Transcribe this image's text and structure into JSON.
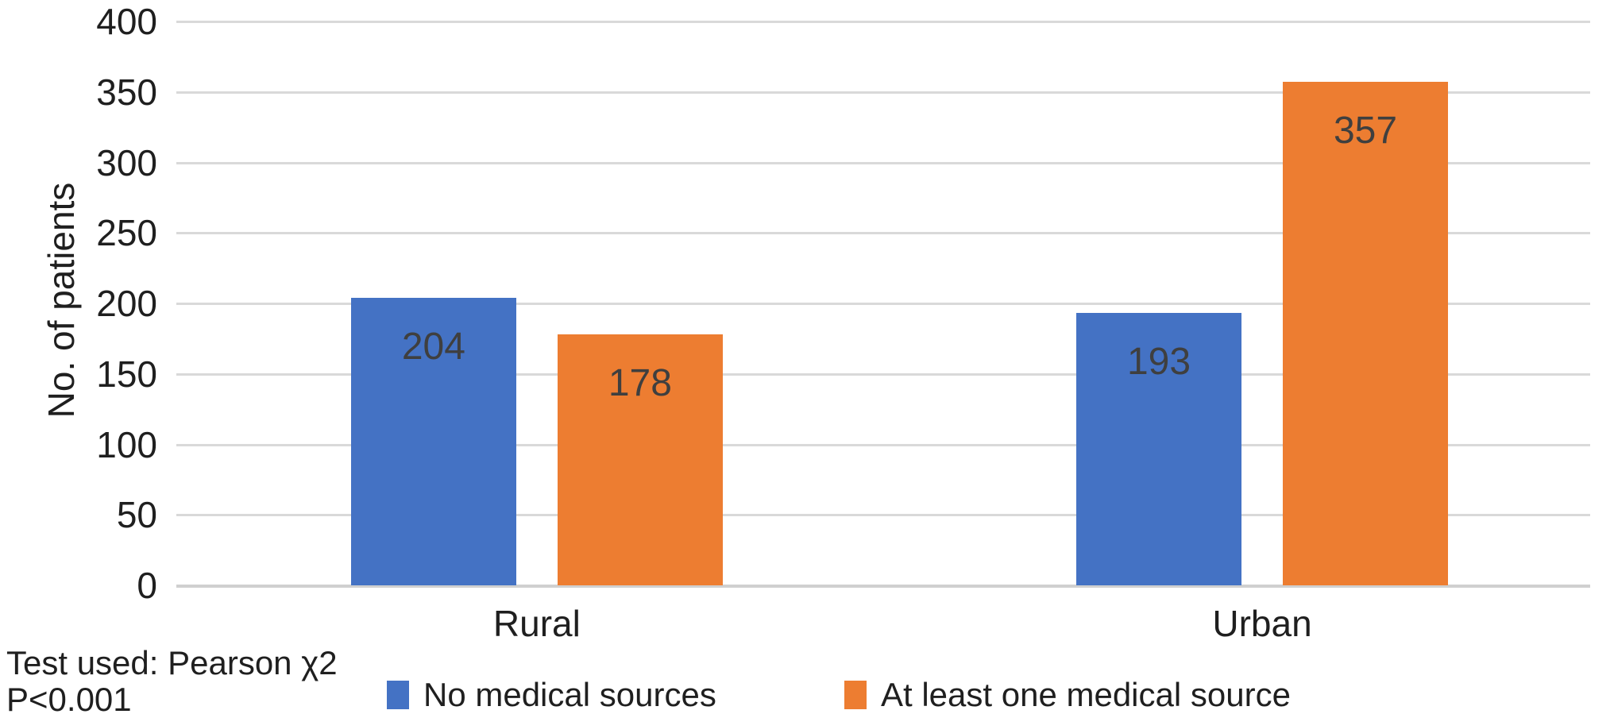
{
  "chart_data": {
    "type": "bar",
    "categories": [
      "Rural",
      "Urban"
    ],
    "series": [
      {
        "name": "No medical sources",
        "color": "#4472C4",
        "values": [
          204,
          193
        ]
      },
      {
        "name": "At least one medical source",
        "color": "#ED7D31",
        "values": [
          178,
          357
        ]
      }
    ],
    "title": "",
    "xlabel": "",
    "ylabel": "No. of patients",
    "ylim": [
      0,
      400
    ],
    "yticks": [
      0,
      50,
      100,
      150,
      200,
      250,
      300,
      350,
      400
    ],
    "grid": true,
    "data_labels": true,
    "legend_position": "bottom"
  },
  "footnote": {
    "line1": "Test used: Pearson χ2",
    "line2": "P<0.001"
  },
  "colors": {
    "series_blue": "#4472C4",
    "series_orange": "#ED7D31",
    "gridline": "#d9d9d9",
    "text": "#1f1f1f",
    "bar_label": "#3f3f3f"
  }
}
